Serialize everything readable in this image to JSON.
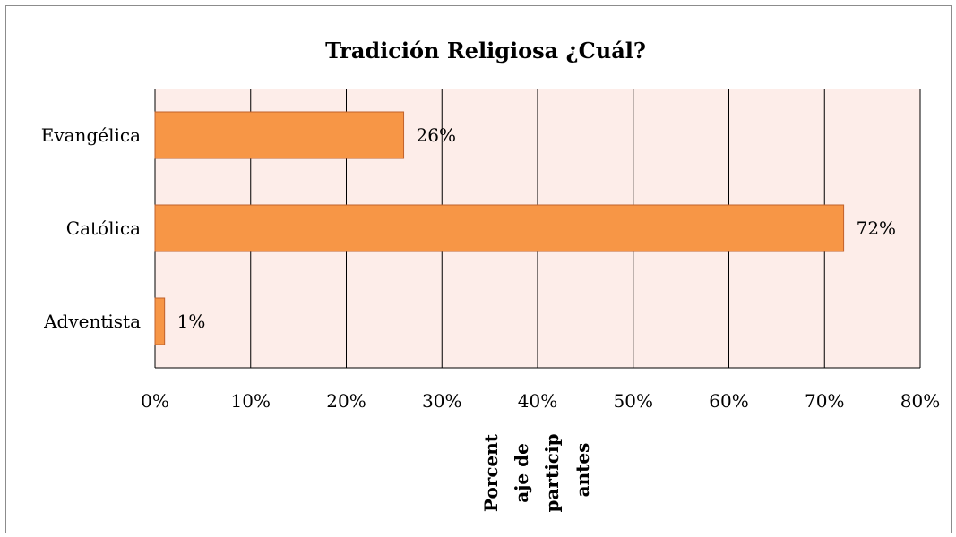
{
  "chart_data": {
    "type": "bar",
    "orientation": "horizontal",
    "title": "Tradición Religiosa ¿Cuál?",
    "categories": [
      "Evangélica",
      "Católica",
      "Adventista"
    ],
    "values": [
      26,
      72,
      1
    ],
    "data_labels": [
      "26%",
      "72%",
      "1%"
    ],
    "xlim": [
      0,
      80
    ],
    "xticks": [
      0,
      10,
      20,
      30,
      40,
      50,
      60,
      70,
      80
    ],
    "xtick_labels": [
      "0%",
      "10%",
      "20%",
      "30%",
      "40%",
      "50%",
      "60%",
      "70%",
      "80%"
    ],
    "xlabel_lines": [
      "Porcent",
      "aje de",
      "particip",
      "antes"
    ],
    "ylabel": "",
    "grid": "vertical",
    "legend": "none",
    "colors": {
      "bar_fill": "#F79646",
      "bar_stroke": "#C0612B",
      "plot_background": "#FDEDE9",
      "grid": "#000000"
    }
  }
}
